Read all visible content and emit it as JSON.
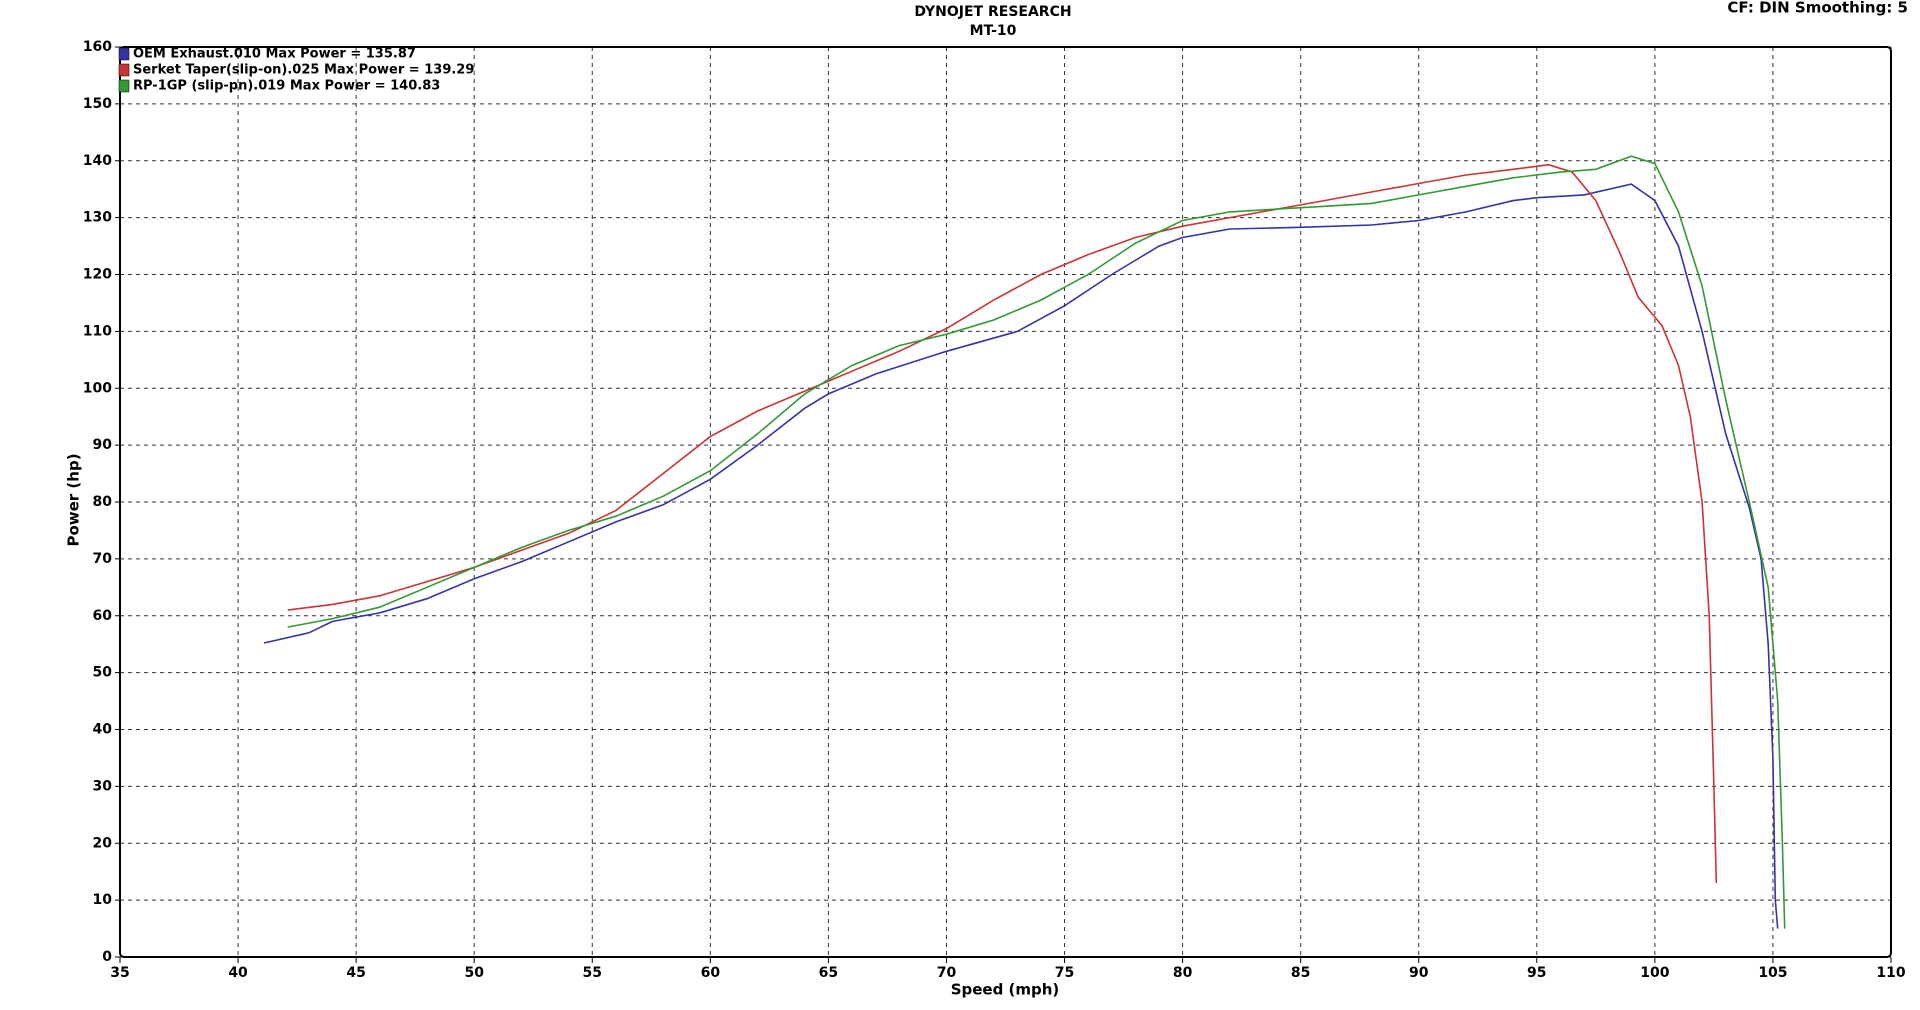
{
  "chart_data": {
    "type": "line",
    "title": "DYNOJET RESEARCH",
    "subtitle": "MT-10",
    "corner_note": "CF: DIN  Smoothing: 5",
    "x_label": "Speed (mph)",
    "y_label": "Power (hp)",
    "xlim": [
      35,
      110
    ],
    "ylim": [
      0,
      160
    ],
    "xticks": [
      35,
      40,
      45,
      50,
      55,
      60,
      65,
      70,
      75,
      80,
      85,
      90,
      95,
      100,
      105,
      110
    ],
    "yticks": [
      0,
      10,
      20,
      30,
      40,
      50,
      60,
      70,
      80,
      90,
      100,
      110,
      120,
      130,
      140,
      150,
      160
    ],
    "grid": true,
    "legend": "top-left",
    "series": [
      {
        "name": "OEM Exhaust.010 Max Power = 135.87",
        "color": "#3333aa",
        "x": [
          41.1,
          43,
          44,
          46,
          48,
          50,
          52,
          54,
          56,
          58,
          60,
          62,
          64,
          65,
          67,
          70,
          73,
          75,
          77,
          79,
          80,
          82,
          85,
          88,
          90,
          92,
          94,
          95,
          97,
          99,
          100,
          101,
          102,
          103,
          104,
          104.5,
          104.8,
          105,
          105.1,
          105.2
        ],
        "values": [
          55.2,
          57,
          59,
          60.5,
          63,
          66.5,
          69.5,
          73,
          76.5,
          79.5,
          84,
          90,
          96.5,
          99,
          102.5,
          106.5,
          110,
          114.5,
          120,
          125,
          126.5,
          128,
          128.3,
          128.7,
          129.5,
          131,
          133,
          133.5,
          134,
          135.9,
          133,
          125,
          110,
          92,
          79,
          70,
          55,
          35,
          10,
          5
        ]
      },
      {
        "name": "Serket Taper(slip-on).025 Max Power = 139.29",
        "color": "#cc3333",
        "x": [
          42.1,
          44,
          46,
          48,
          50,
          52,
          54,
          56,
          58,
          60,
          62,
          64,
          66,
          68,
          70,
          72,
          74,
          76,
          78,
          80,
          82,
          84,
          86,
          88,
          90,
          92,
          94,
          95.5,
          96.5,
          97.5,
          98.5,
          99.3,
          100.3,
          101,
          101.5,
          102,
          102.3,
          102.5,
          102.6
        ],
        "values": [
          61,
          62,
          63.5,
          66,
          68.5,
          71.5,
          74.5,
          78.5,
          85,
          91.5,
          96,
          99.5,
          103,
          106.5,
          110.5,
          115.5,
          120,
          123.5,
          126.5,
          128.5,
          130,
          131.5,
          133,
          134.5,
          136,
          137.5,
          138.5,
          139.3,
          138,
          133,
          124,
          116,
          111,
          104,
          95,
          80,
          60,
          30,
          13
        ]
      },
      {
        "name": "RP-1GP (slip-pn).019 Max Power = 140.83",
        "color": "#339933",
        "x": [
          42.1,
          44,
          46,
          48,
          50,
          52,
          54,
          56,
          58,
          60,
          62,
          64,
          66,
          68,
          70,
          72,
          74,
          76,
          78,
          80,
          82,
          84,
          86,
          88,
          90,
          92,
          94,
          96,
          97.5,
          99,
          100,
          101,
          102,
          103,
          104,
          104.8,
          105.2,
          105.4,
          105.5
        ],
        "values": [
          58,
          59.5,
          61.5,
          65,
          68.5,
          72,
          75,
          77.5,
          81,
          85.5,
          92,
          99,
          104,
          107.5,
          109.5,
          112,
          115.5,
          120,
          125.5,
          129.5,
          131,
          131.5,
          132,
          132.5,
          134,
          135.5,
          137,
          138,
          138.5,
          140.8,
          139.5,
          131,
          118,
          98,
          80,
          65,
          45,
          20,
          5
        ]
      }
    ]
  }
}
